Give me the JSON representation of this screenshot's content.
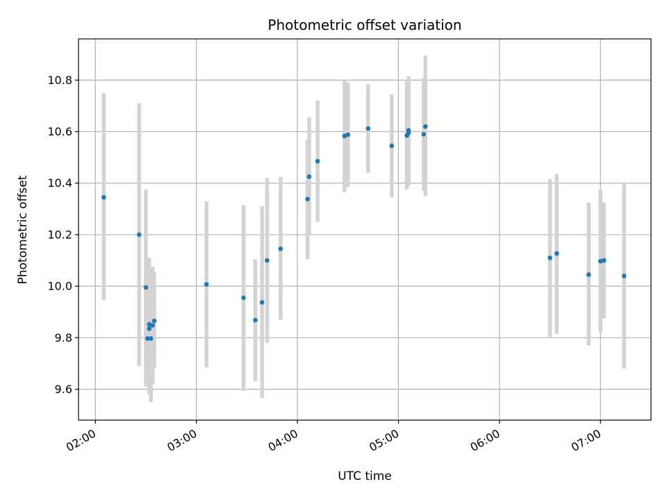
{
  "chart_data": {
    "type": "scatter",
    "title": "Photometric offset variation",
    "xlabel": "UTC time",
    "ylabel": "Photometric offset",
    "grid": true,
    "xlim": [
      "01:50",
      "07:30"
    ],
    "ylim": [
      9.48,
      10.96
    ],
    "xticks": [
      "02:00",
      "03:00",
      "04:00",
      "05:00",
      "06:00",
      "07:00"
    ],
    "yticks": [
      "9.6",
      "9.8",
      "10.0",
      "10.2",
      "10.4",
      "10.6",
      "10.8"
    ],
    "point_color": "#1f77b4",
    "errorbar_color": "#d3d3d3",
    "points": [
      {
        "x": "02:05",
        "y": 10.345,
        "lo": 9.945,
        "hi": 10.75
      },
      {
        "x": "02:26",
        "y": 10.2,
        "lo": 9.69,
        "hi": 10.71
      },
      {
        "x": "02:30",
        "y": 9.995,
        "lo": 9.61,
        "hi": 10.375
      },
      {
        "x": "02:31",
        "y": 9.797,
        "lo": 9.61,
        "hi": 10.0
      },
      {
        "x": "02:32",
        "y": 9.852,
        "lo": 9.59,
        "hi": 10.11
      },
      {
        "x": "02:32",
        "y": 9.835,
        "lo": 9.58,
        "hi": 10.09
      },
      {
        "x": "02:33",
        "y": 9.797,
        "lo": 9.55,
        "hi": 10.05
      },
      {
        "x": "02:34",
        "y": 9.848,
        "lo": 9.62,
        "hi": 10.075
      },
      {
        "x": "02:35",
        "y": 9.865,
        "lo": 9.68,
        "hi": 10.055
      },
      {
        "x": "03:06",
        "y": 10.007,
        "lo": 9.685,
        "hi": 10.33
      },
      {
        "x": "03:28",
        "y": 9.955,
        "lo": 9.595,
        "hi": 10.315
      },
      {
        "x": "03:35",
        "y": 9.868,
        "lo": 9.63,
        "hi": 10.105
      },
      {
        "x": "03:39",
        "y": 9.937,
        "lo": 9.565,
        "hi": 10.31
      },
      {
        "x": "03:42",
        "y": 10.1,
        "lo": 9.78,
        "hi": 10.42
      },
      {
        "x": "03:50",
        "y": 10.145,
        "lo": 9.87,
        "hi": 10.425
      },
      {
        "x": "04:06",
        "y": 10.338,
        "lo": 10.105,
        "hi": 10.57
      },
      {
        "x": "04:07",
        "y": 10.425,
        "lo": 10.2,
        "hi": 10.655
      },
      {
        "x": "04:12",
        "y": 10.485,
        "lo": 10.25,
        "hi": 10.72
      },
      {
        "x": "04:28",
        "y": 10.583,
        "lo": 10.365,
        "hi": 10.8
      },
      {
        "x": "04:30",
        "y": 10.588,
        "lo": 10.385,
        "hi": 10.79
      },
      {
        "x": "04:42",
        "y": 10.612,
        "lo": 10.44,
        "hi": 10.785
      },
      {
        "x": "04:56",
        "y": 10.545,
        "lo": 10.345,
        "hi": 10.745
      },
      {
        "x": "05:05",
        "y": 10.585,
        "lo": 10.375,
        "hi": 10.8
      },
      {
        "x": "05:06",
        "y": 10.605,
        "lo": 10.395,
        "hi": 10.815
      },
      {
        "x": "05:06",
        "y": 10.595,
        "lo": 10.39,
        "hi": 10.8
      },
      {
        "x": "05:15",
        "y": 10.59,
        "lo": 10.37,
        "hi": 10.81
      },
      {
        "x": "05:16",
        "y": 10.62,
        "lo": 10.35,
        "hi": 10.895
      },
      {
        "x": "06:30",
        "y": 10.11,
        "lo": 9.8,
        "hi": 10.415
      },
      {
        "x": "06:34",
        "y": 10.127,
        "lo": 9.815,
        "hi": 10.435
      },
      {
        "x": "06:53",
        "y": 10.045,
        "lo": 9.77,
        "hi": 10.325
      },
      {
        "x": "07:00",
        "y": 10.097,
        "lo": 9.82,
        "hi": 10.375
      },
      {
        "x": "07:02",
        "y": 10.1,
        "lo": 9.875,
        "hi": 10.325
      },
      {
        "x": "07:14",
        "y": 10.04,
        "lo": 9.68,
        "hi": 10.4
      }
    ]
  }
}
